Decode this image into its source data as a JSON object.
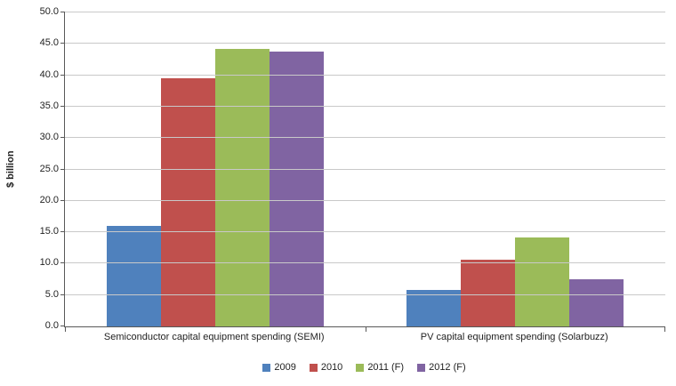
{
  "chart_data": {
    "type": "bar",
    "title": "",
    "xlabel": "",
    "ylabel": "$ billion",
    "ylim": [
      0,
      50
    ],
    "ytick_step": 5,
    "ytick_labels": [
      "0.0",
      "5.0",
      "10.0",
      "15.0",
      "20.0",
      "25.0",
      "30.0",
      "35.0",
      "40.0",
      "45.0",
      "50.0"
    ],
    "grid": true,
    "legend_position": "bottom",
    "categories": [
      "Semiconductor capital equipment spending (SEMI)",
      "PV capital equipment spending (Solarbuzz)"
    ],
    "series": [
      {
        "name": "2009",
        "color": "#4F81BD",
        "values": [
          16.0,
          5.8
        ]
      },
      {
        "name": "2010",
        "color": "#C0504D",
        "values": [
          39.5,
          10.6
        ]
      },
      {
        "name": "2011 (F)",
        "color": "#9BBB59",
        "values": [
          44.2,
          14.2
        ]
      },
      {
        "name": "2012 (F)",
        "color": "#8064A2",
        "values": [
          43.7,
          7.5
        ]
      }
    ],
    "gridline_color": "#C9C9C9",
    "axis_color": "#595959",
    "text_color": "#222222"
  }
}
